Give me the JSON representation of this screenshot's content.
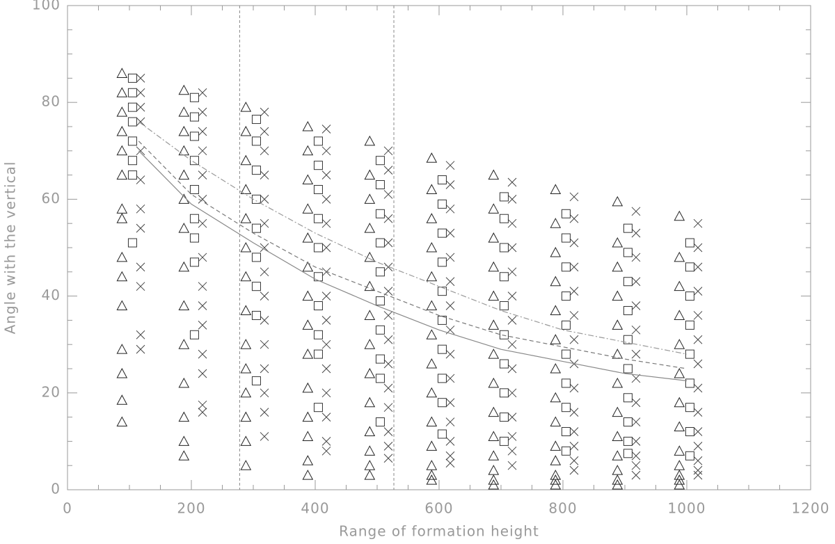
{
  "chart_data": {
    "type": "scatter",
    "xlabel": "Range of formation height",
    "ylabel": "Angle with the vertical",
    "xlim": [
      0,
      1200
    ],
    "xticks": [
      0,
      200,
      400,
      600,
      800,
      1000,
      1200
    ],
    "xminor": 4,
    "ylim": [
      0,
      100
    ],
    "yticks": [
      0,
      20,
      40,
      60,
      80,
      100
    ],
    "yminor": 4,
    "axis_color": "#999999",
    "series": [
      {
        "marker": "triangle",
        "color": "#222222",
        "columns": [
          {
            "x": 88,
            "values": [
              86,
              82,
              78,
              74,
              70,
              65,
              58,
              56,
              48,
              44,
              38,
              29,
              24,
              18.5,
              14
            ]
          },
          {
            "x": 188,
            "values": [
              82.5,
              78,
              74,
              70,
              65,
              60,
              54,
              46,
              38,
              30,
              22,
              15,
              10,
              7
            ]
          },
          {
            "x": 288,
            "values": [
              79,
              74,
              68,
              62,
              56,
              50,
              44,
              37,
              30,
              25,
              20,
              15,
              10,
              5
            ]
          },
          {
            "x": 388,
            "values": [
              75,
              70,
              64,
              58,
              52,
              46,
              40,
              34,
              28,
              21,
              15,
              11,
              6,
              3
            ]
          },
          {
            "x": 488,
            "values": [
              72,
              65,
              60,
              54,
              48,
              42,
              36,
              30,
              24,
              18,
              12,
              8,
              5,
              3
            ]
          },
          {
            "x": 588,
            "values": [
              68.5,
              62,
              56,
              50,
              44,
              38,
              32,
              26,
              20,
              14,
              9,
              5,
              3,
              2
            ]
          },
          {
            "x": 688,
            "values": [
              65,
              58,
              52,
              46,
              40,
              34,
              28,
              22,
              16,
              11,
              7,
              4,
              2,
              1
            ]
          },
          {
            "x": 788,
            "values": [
              62,
              55,
              49,
              43,
              37,
              31,
              25,
              19,
              14,
              9,
              6,
              3,
              2,
              1
            ]
          },
          {
            "x": 888,
            "values": [
              59.5,
              51,
              46,
              40,
              34,
              28,
              22,
              16,
              11,
              7,
              4,
              2,
              1
            ]
          },
          {
            "x": 988,
            "values": [
              56.5,
              48,
              42,
              36,
              30,
              24,
              18,
              13,
              8,
              5,
              3,
              2,
              1
            ]
          }
        ]
      },
      {
        "marker": "square",
        "color": "#333333",
        "columns": [
          {
            "x": 105,
            "values": [
              85,
              82,
              79,
              76,
              72,
              68,
              65,
              51
            ]
          },
          {
            "x": 205,
            "values": [
              81,
              77,
              73,
              68,
              62,
              56,
              52,
              47,
              32
            ]
          },
          {
            "x": 305,
            "values": [
              76.5,
              72,
              66,
              60,
              54,
              48,
              42,
              36,
              22.5
            ]
          },
          {
            "x": 405,
            "values": [
              72,
              67,
              62,
              56,
              50,
              44,
              38,
              32,
              28,
              17
            ]
          },
          {
            "x": 505,
            "values": [
              68,
              63,
              57,
              51,
              45,
              39,
              33,
              27,
              23,
              14
            ]
          },
          {
            "x": 605,
            "values": [
              64,
              59,
              53,
              47,
              41,
              35,
              29,
              23,
              18,
              11.5
            ]
          },
          {
            "x": 705,
            "values": [
              60.5,
              56,
              50,
              44,
              38,
              32,
              26,
              20,
              15,
              10
            ]
          },
          {
            "x": 805,
            "values": [
              57,
              52,
              46,
              40,
              34,
              28,
              22,
              17,
              12,
              8
            ]
          },
          {
            "x": 905,
            "values": [
              54,
              49,
              43,
              37,
              31,
              25,
              19,
              14,
              10,
              7.5
            ]
          },
          {
            "x": 1005,
            "values": [
              51,
              46,
              40,
              34,
              28,
              22,
              17,
              12,
              7
            ]
          }
        ]
      },
      {
        "marker": "cross",
        "color": "#444444",
        "columns": [
          {
            "x": 118,
            "values": [
              85,
              82,
              79,
              76,
              70,
              64,
              58,
              54,
              46,
              42,
              32,
              29
            ]
          },
          {
            "x": 218,
            "values": [
              82,
              78,
              74,
              70,
              65,
              60,
              55,
              48,
              42,
              38,
              34,
              28,
              24,
              17.5,
              16
            ]
          },
          {
            "x": 318,
            "values": [
              78,
              74,
              70,
              65,
              60,
              55,
              50,
              45,
              40,
              35,
              30,
              25,
              20,
              16,
              11
            ]
          },
          {
            "x": 418,
            "values": [
              74.5,
              70,
              65,
              60,
              55,
              50,
              45,
              40,
              35,
              30,
              25,
              20,
              15,
              10,
              8
            ]
          },
          {
            "x": 518,
            "values": [
              70,
              66,
              61,
              56,
              51,
              46,
              41,
              36,
              31,
              26,
              21,
              17,
              12,
              9,
              6.5
            ]
          },
          {
            "x": 618,
            "values": [
              67,
              63,
              58,
              53,
              48,
              43,
              38,
              33,
              28,
              23,
              18,
              14,
              10,
              7,
              5.5
            ]
          },
          {
            "x": 718,
            "values": [
              63.5,
              60,
              55,
              50,
              45,
              40,
              35,
              30,
              25,
              20,
              15,
              11,
              8,
              5
            ]
          },
          {
            "x": 818,
            "values": [
              60.5,
              56,
              51,
              46,
              41,
              36,
              31,
              26,
              21,
              16,
              12,
              9,
              6,
              4
            ]
          },
          {
            "x": 918,
            "values": [
              57.5,
              53,
              48,
              43,
              38,
              33,
              28,
              23,
              18,
              14,
              10,
              7,
              5,
              3
            ]
          },
          {
            "x": 1018,
            "values": [
              55,
              50,
              46,
              41,
              36,
              31,
              26,
              21,
              16,
              12,
              9,
              6,
              4,
              3
            ]
          }
        ]
      }
    ],
    "lines": [
      {
        "style": "solid",
        "color": "#888888",
        "x": [
          115,
          200,
          300,
          400,
          500,
          600,
          700,
          800,
          900,
          1000
        ],
        "values": [
          70,
          59,
          51,
          43.5,
          38,
          33,
          29,
          26.5,
          24,
          22.5
        ]
      },
      {
        "style": "dashed",
        "color": "#777777",
        "x": [
          115,
          200,
          300,
          400,
          500,
          600,
          700,
          800,
          900,
          1000
        ],
        "values": [
          72,
          61,
          53,
          46,
          41,
          36,
          32,
          29.5,
          27,
          25
        ]
      },
      {
        "style": "dashdot",
        "color": "#999999",
        "x": [
          115,
          200,
          300,
          400,
          500,
          600,
          700,
          800,
          900,
          1000
        ],
        "values": [
          76,
          68,
          60,
          53,
          47,
          42,
          37,
          33,
          30.5,
          28
        ]
      }
    ],
    "vlines": [
      {
        "value": 278,
        "style": "dashed",
        "color": "#888888"
      },
      {
        "value": 527,
        "style": "dashed",
        "color": "#888888"
      }
    ]
  }
}
